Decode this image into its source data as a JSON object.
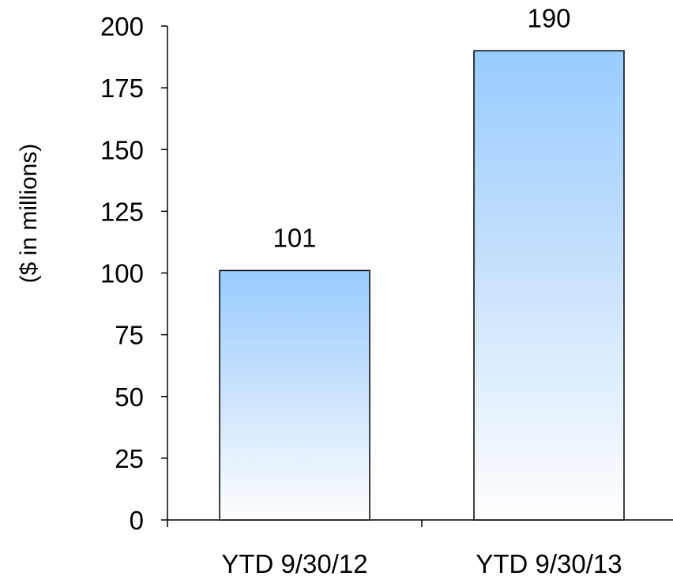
{
  "chart_data": {
    "type": "bar",
    "categories": [
      "YTD 9/30/12",
      "YTD 9/30/13"
    ],
    "values": [
      101,
      190
    ],
    "data_labels": [
      "101",
      "190"
    ],
    "title": "",
    "xlabel": "",
    "ylabel": "($ in millions)",
    "ylim": [
      0,
      200
    ],
    "yticks": [
      0,
      25,
      50,
      75,
      100,
      125,
      150,
      175,
      200
    ],
    "grid": false,
    "legend": "none",
    "colors": {
      "bar_top": "#99ccff",
      "bar_bottom": "#ffffff",
      "bar_edge": "#000000",
      "axis": "#000000"
    }
  }
}
